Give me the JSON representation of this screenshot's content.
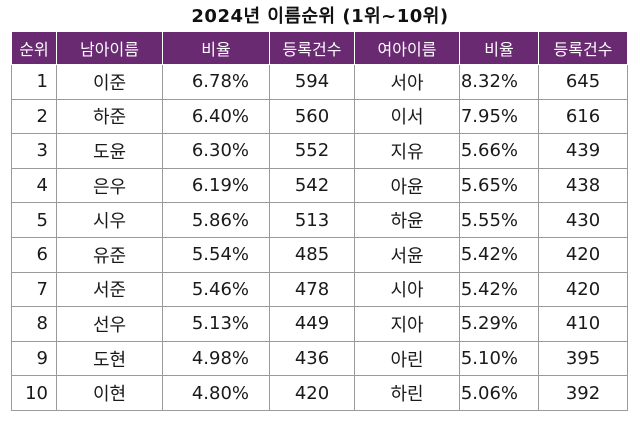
{
  "title": "2024년 이름순위 (1위~10위)",
  "headers": {
    "rank": "순위",
    "male_name": "남아이름",
    "male_ratio": "비율",
    "male_count": "등록건수",
    "female_name": "여아이름",
    "female_ratio": "비율",
    "female_count": "등록건수"
  },
  "rows": [
    {
      "rank": "1",
      "male_name": "이준",
      "male_ratio": "6.78%",
      "male_count": "594",
      "female_name": "서아",
      "female_ratio": "8.32%",
      "female_count": "645"
    },
    {
      "rank": "2",
      "male_name": "하준",
      "male_ratio": "6.40%",
      "male_count": "560",
      "female_name": "이서",
      "female_ratio": "7.95%",
      "female_count": "616"
    },
    {
      "rank": "3",
      "male_name": "도윤",
      "male_ratio": "6.30%",
      "male_count": "552",
      "female_name": "지유",
      "female_ratio": "5.66%",
      "female_count": "439"
    },
    {
      "rank": "4",
      "male_name": "은우",
      "male_ratio": "6.19%",
      "male_count": "542",
      "female_name": "아윤",
      "female_ratio": "5.65%",
      "female_count": "438"
    },
    {
      "rank": "5",
      "male_name": "시우",
      "male_ratio": "5.86%",
      "male_count": "513",
      "female_name": "하윤",
      "female_ratio": "5.55%",
      "female_count": "430"
    },
    {
      "rank": "6",
      "male_name": "유준",
      "male_ratio": "5.54%",
      "male_count": "485",
      "female_name": "서윤",
      "female_ratio": "5.42%",
      "female_count": "420"
    },
    {
      "rank": "7",
      "male_name": "서준",
      "male_ratio": "5.46%",
      "male_count": "478",
      "female_name": "시아",
      "female_ratio": "5.42%",
      "female_count": "420"
    },
    {
      "rank": "8",
      "male_name": "선우",
      "male_ratio": "5.13%",
      "male_count": "449",
      "female_name": "지아",
      "female_ratio": "5.29%",
      "female_count": "410"
    },
    {
      "rank": "9",
      "male_name": "도현",
      "male_ratio": "4.98%",
      "male_count": "436",
      "female_name": "아린",
      "female_ratio": "5.10%",
      "female_count": "395"
    },
    {
      "rank": "10",
      "male_name": "이현",
      "male_ratio": "4.80%",
      "male_count": "420",
      "female_name": "하린",
      "female_ratio": "5.06%",
      "female_count": "392"
    }
  ]
}
